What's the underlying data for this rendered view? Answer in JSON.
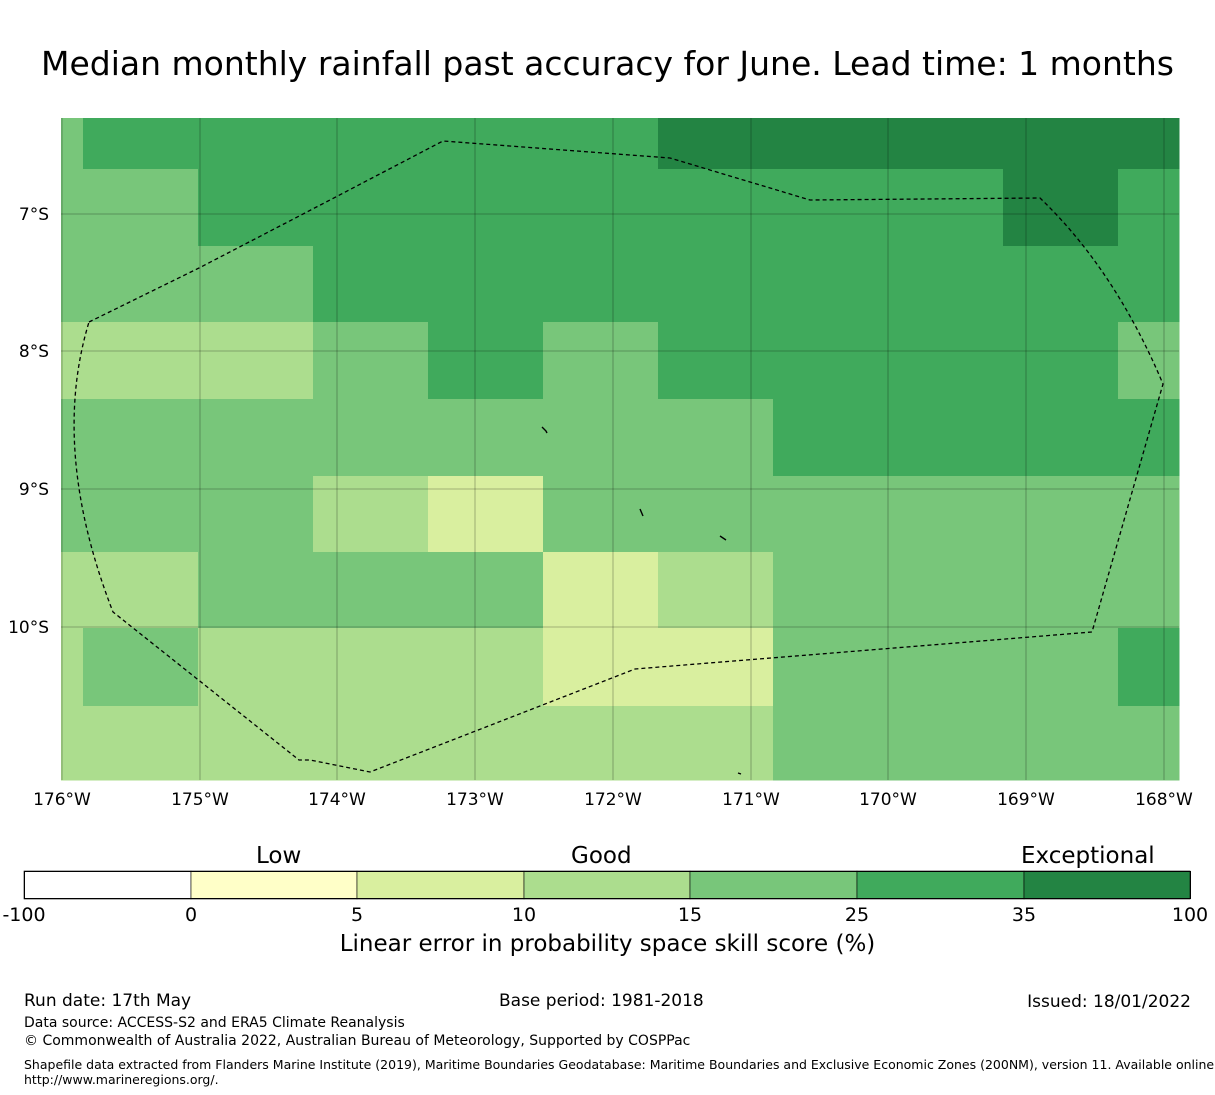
{
  "title": "Median monthly rainfall past accuracy for June. Lead time: 1 months",
  "colors": {
    "c1": "#ffffc8",
    "c2": "#d9ef9f",
    "c3": "#acdd8e",
    "c4": "#78c67a",
    "c5": "#40aa5c",
    "c6": "#238443"
  },
  "map": {
    "lon_ticks": [
      "176°W",
      "175°W",
      "174°W",
      "173°W",
      "172°W",
      "171°W",
      "170°W",
      "169°W",
      "168°W"
    ],
    "lat_ticks": [
      "7°S",
      "8°S",
      "9°S",
      "10°S"
    ],
    "grid_cells": [
      [
        "c4",
        "c5",
        "c5",
        "c5",
        "c5",
        "c5",
        "c6",
        "c6",
        "c6",
        "c6"
      ],
      [
        "c4",
        "c4",
        "c5",
        "c5",
        "c5",
        "c5",
        "c5",
        "c5",
        "c6",
        "c5"
      ],
      [
        "c4",
        "c4",
        "c4",
        "c5",
        "c5",
        "c5",
        "c5",
        "c5",
        "c5",
        "c5"
      ],
      [
        "c3",
        "c3",
        "c3",
        "c4",
        "c5",
        "c4",
        "c5",
        "c5",
        "c5",
        "c4"
      ],
      [
        "c4",
        "c4",
        "c4",
        "c4",
        "c4",
        "c4",
        "c4",
        "c5",
        "c5",
        "c5"
      ],
      [
        "c4",
        "c4",
        "c4",
        "c3",
        "c2",
        "c4",
        "c4",
        "c4",
        "c4",
        "c4"
      ],
      [
        "c3",
        "c3",
        "c4",
        "c4",
        "c4",
        "c2",
        "c3",
        "c4",
        "c4",
        "c4"
      ],
      [
        "c3",
        "c4",
        "c3",
        "c3",
        "c3",
        "c2",
        "c2",
        "c4",
        "c4",
        "c5"
      ],
      [
        "c3",
        "c3",
        "c3",
        "c3",
        "c3",
        "c3",
        "c3",
        "c4",
        "c4",
        "c4"
      ]
    ]
  },
  "colorbar": {
    "categories": [
      "Low",
      "Good",
      "Exceptional"
    ],
    "tick_labels": [
      "-100",
      "0",
      "5",
      "10",
      "15",
      "25",
      "35",
      "100"
    ],
    "segments": [
      "#ffffff",
      "#ffffc8",
      "#d9ef9f",
      "#acdd8e",
      "#78c67a",
      "#40aa5c",
      "#238443"
    ],
    "title": "Linear error in probability space skill score (%)"
  },
  "footer": {
    "run_date": "Run date: 17th May",
    "base_period": "Base period: 1981-2018",
    "issued": "Issued: 18/01/2022",
    "data_source": "Data source: ACCESS-S2 and ERA5 Climate Reanalysis",
    "copyright": "© Commonwealth of Australia 2022, Australian Bureau of Meteorology, Supported by COSPPac",
    "shapefile_line1": "Shapefile data extracted from Flanders Marine Institute (2019), Maritime Boundaries Geodatabase: Maritime Boundaries and Exclusive Economic Zones (200NM), version 11. Available online at",
    "shapefile_line2": "http://www.marineregions.org/."
  }
}
